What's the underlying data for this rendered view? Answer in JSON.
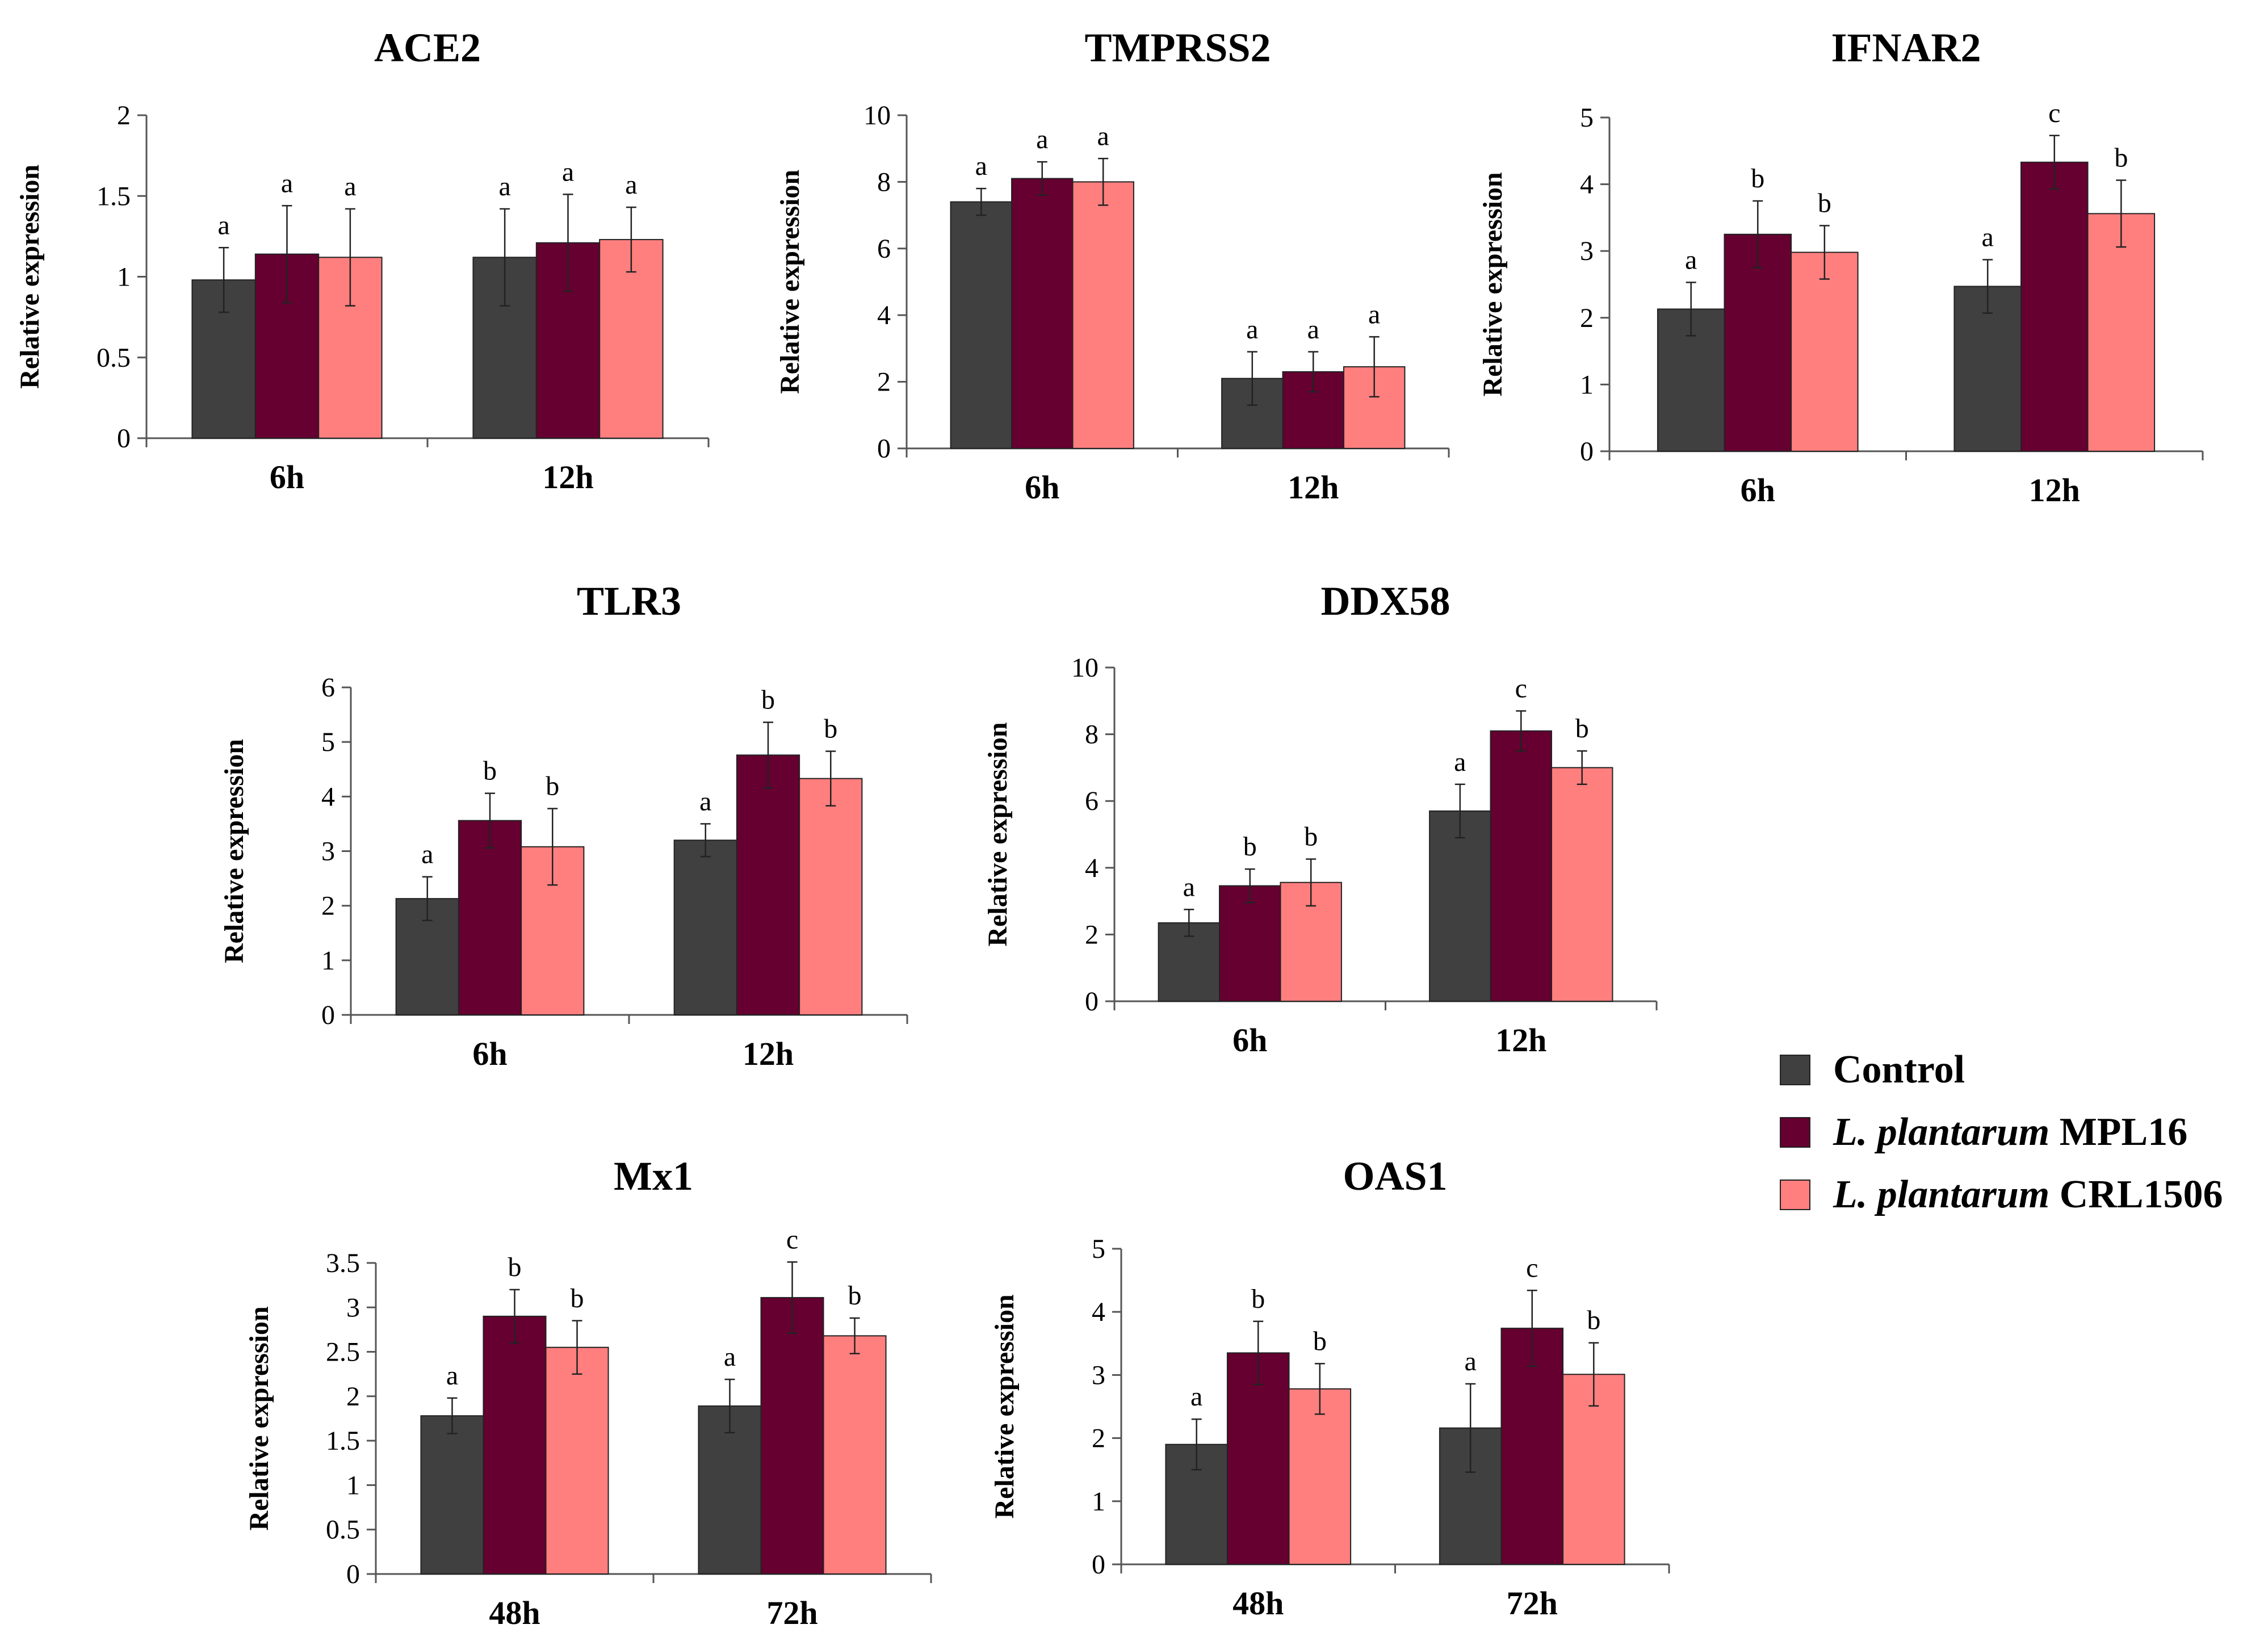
{
  "colors": {
    "control": "#404040",
    "mpl16": "#650030",
    "crl1506": "#ff7f7f"
  },
  "legend": [
    {
      "key": "control",
      "italic": "",
      "text": "Control"
    },
    {
      "key": "mpl16",
      "italic": "L. plantarum",
      "text": " MPL16"
    },
    {
      "key": "crl1506",
      "italic": "L. plantarum",
      "text": " CRL1506"
    }
  ],
  "chart_data": [
    {
      "type": "bar",
      "title": "ACE2",
      "ylabel": "Relative expression",
      "xlabel": "",
      "categories": [
        "6h",
        "12h"
      ],
      "ylim": [
        0,
        2
      ],
      "yticks": [
        0,
        0.5,
        1,
        1.5,
        2
      ],
      "ytick_labels": [
        "0",
        "0.5",
        "1",
        "1.5",
        "2"
      ],
      "series": [
        {
          "name": "Control",
          "values": [
            0.98,
            1.12
          ],
          "errors": [
            0.2,
            0.3
          ],
          "sig": [
            "a",
            "a"
          ]
        },
        {
          "name": "L. plantarum MPL16",
          "values": [
            1.14,
            1.21
          ],
          "errors": [
            0.3,
            0.3
          ],
          "sig": [
            "a",
            "a"
          ]
        },
        {
          "name": "L. plantarum CRL1506",
          "values": [
            1.12,
            1.23
          ],
          "errors": [
            0.3,
            0.2
          ],
          "sig": [
            "a",
            "a"
          ]
        }
      ]
    },
    {
      "type": "bar",
      "title": "TMPRSS2",
      "ylabel": "Relative expression",
      "xlabel": "",
      "categories": [
        "6h",
        "12h"
      ],
      "ylim": [
        0,
        10
      ],
      "yticks": [
        0,
        2,
        4,
        6,
        8,
        10
      ],
      "ytick_labels": [
        "0",
        "2",
        "4",
        "6",
        "8",
        "10"
      ],
      "series": [
        {
          "name": "Control",
          "values": [
            7.4,
            2.1
          ],
          "errors": [
            0.4,
            0.8
          ],
          "sig": [
            "a",
            "a"
          ]
        },
        {
          "name": "L. plantarum MPL16",
          "values": [
            8.1,
            2.3
          ],
          "errors": [
            0.5,
            0.6
          ],
          "sig": [
            "a",
            "a"
          ]
        },
        {
          "name": "L. plantarum CRL1506",
          "values": [
            8.0,
            2.45
          ],
          "errors": [
            0.7,
            0.9
          ],
          "sig": [
            "a",
            "a"
          ]
        }
      ]
    },
    {
      "type": "bar",
      "title": "IFNAR2",
      "ylabel": "Relative expression",
      "xlabel": "",
      "categories": [
        "6h",
        "12h"
      ],
      "ylim": [
        0,
        5
      ],
      "yticks": [
        0,
        1,
        2,
        3,
        4,
        5
      ],
      "ytick_labels": [
        "0",
        "1",
        "2",
        "3",
        "4",
        "5"
      ],
      "series": [
        {
          "name": "Control",
          "values": [
            2.13,
            2.47
          ],
          "errors": [
            0.4,
            0.4
          ],
          "sig": [
            "a",
            "a"
          ]
        },
        {
          "name": "L. plantarum MPL16",
          "values": [
            3.25,
            4.33
          ],
          "errors": [
            0.5,
            0.4
          ],
          "sig": [
            "b",
            "c"
          ]
        },
        {
          "name": "L. plantarum CRL1506",
          "values": [
            2.98,
            3.56
          ],
          "errors": [
            0.4,
            0.5
          ],
          "sig": [
            "b",
            "b"
          ]
        }
      ]
    },
    {
      "type": "bar",
      "title": "TLR3",
      "ylabel": "Relative expression",
      "xlabel": "",
      "categories": [
        "6h",
        "12h"
      ],
      "ylim": [
        0,
        6
      ],
      "yticks": [
        0,
        1,
        2,
        3,
        4,
        5,
        6
      ],
      "ytick_labels": [
        "0",
        "1",
        "2",
        "3",
        "4",
        "5",
        "6"
      ],
      "series": [
        {
          "name": "Control",
          "values": [
            2.13,
            3.2
          ],
          "errors": [
            0.4,
            0.3
          ],
          "sig": [
            "a",
            "a"
          ]
        },
        {
          "name": "L. plantarum MPL16",
          "values": [
            3.56,
            4.76
          ],
          "errors": [
            0.5,
            0.6
          ],
          "sig": [
            "b",
            "b"
          ]
        },
        {
          "name": "L. plantarum CRL1506",
          "values": [
            3.08,
            4.33
          ],
          "errors": [
            0.7,
            0.5
          ],
          "sig": [
            "b",
            "b"
          ]
        }
      ]
    },
    {
      "type": "bar",
      "title": "DDX58",
      "ylabel": "Relative expression",
      "xlabel": "",
      "categories": [
        "6h",
        "12h"
      ],
      "ylim": [
        0,
        10
      ],
      "yticks": [
        0,
        2,
        4,
        6,
        8,
        10
      ],
      "ytick_labels": [
        "0",
        "2",
        "4",
        "6",
        "8",
        "10"
      ],
      "series": [
        {
          "name": "Control",
          "values": [
            2.35,
            5.7
          ],
          "errors": [
            0.4,
            0.8
          ],
          "sig": [
            "a",
            "a"
          ]
        },
        {
          "name": "L. plantarum MPL16",
          "values": [
            3.46,
            8.1
          ],
          "errors": [
            0.5,
            0.6
          ],
          "sig": [
            "b",
            "c"
          ]
        },
        {
          "name": "L. plantarum CRL1506",
          "values": [
            3.56,
            7.0
          ],
          "errors": [
            0.7,
            0.5
          ],
          "sig": [
            "b",
            "b"
          ]
        }
      ]
    },
    {
      "type": "bar",
      "title": "Mx1",
      "ylabel": "Relative expression",
      "xlabel": "",
      "categories": [
        "48h",
        "72h"
      ],
      "ylim": [
        0,
        3.5
      ],
      "yticks": [
        0,
        0.5,
        1,
        1.5,
        2,
        2.5,
        3,
        3.5
      ],
      "ytick_labels": [
        "0",
        "0.5",
        "1",
        "1.5",
        "2",
        "2.5",
        "3",
        "3.5"
      ],
      "series": [
        {
          "name": "Control",
          "values": [
            1.78,
            1.89
          ],
          "errors": [
            0.2,
            0.3
          ],
          "sig": [
            "a",
            "a"
          ]
        },
        {
          "name": "L. plantarum MPL16",
          "values": [
            2.9,
            3.11
          ],
          "errors": [
            0.3,
            0.4
          ],
          "sig": [
            "b",
            "c"
          ]
        },
        {
          "name": "L. plantarum CRL1506",
          "values": [
            2.55,
            2.68
          ],
          "errors": [
            0.3,
            0.2
          ],
          "sig": [
            "b",
            "b"
          ]
        }
      ]
    },
    {
      "type": "bar",
      "title": "OAS1",
      "ylabel": "Relative expression",
      "xlabel": "",
      "categories": [
        "48h",
        "72h"
      ],
      "ylim": [
        0,
        5
      ],
      "yticks": [
        0,
        1,
        2,
        3,
        4,
        5
      ],
      "ytick_labels": [
        "0",
        "1",
        "2",
        "3",
        "4",
        "5"
      ],
      "series": [
        {
          "name": "Control",
          "values": [
            1.9,
            2.16
          ],
          "errors": [
            0.4,
            0.7
          ],
          "sig": [
            "a",
            "a"
          ]
        },
        {
          "name": "L. plantarum MPL16",
          "values": [
            3.35,
            3.74
          ],
          "errors": [
            0.5,
            0.6
          ],
          "sig": [
            "b",
            "c"
          ]
        },
        {
          "name": "L. plantarum CRL1506",
          "values": [
            2.78,
            3.01
          ],
          "errors": [
            0.4,
            0.5
          ],
          "sig": [
            "b",
            "b"
          ]
        }
      ]
    }
  ]
}
